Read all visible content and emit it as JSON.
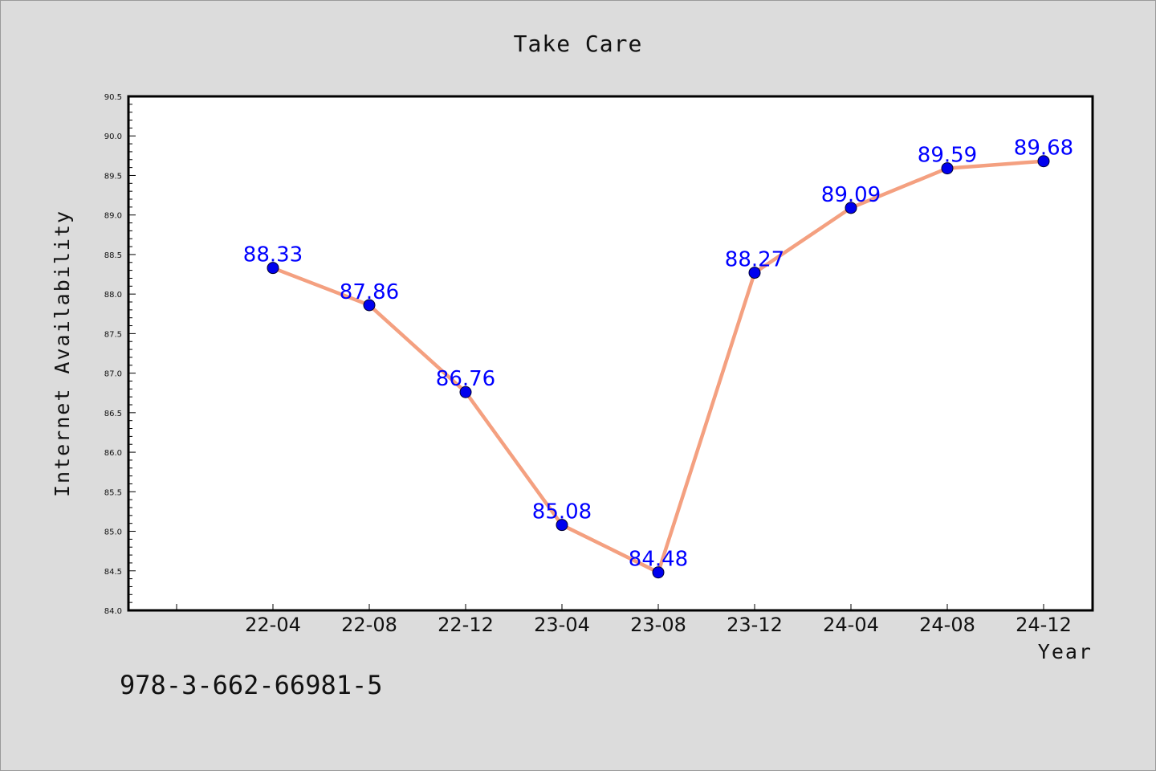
{
  "chart_data": {
    "type": "line",
    "title": "Take Care",
    "xlabel": "Year",
    "ylabel": "Internet Availability",
    "categories": [
      "22-04",
      "22-08",
      "22-12",
      "23-04",
      "23-08",
      "23-12",
      "24-04",
      "24-08",
      "24-12"
    ],
    "series": [
      {
        "values": [
          88.33,
          87.86,
          86.76,
          85.08,
          84.48,
          88.27,
          89.09,
          89.59,
          89.68
        ],
        "labels": [
          "88.33",
          "87.86",
          "86.76",
          "85.08",
          "84.48",
          "88.27",
          "89.09",
          "89.59",
          "89.68"
        ],
        "line_color": "#f4a080",
        "marker_color": "#0000ee",
        "label_color": "#0000ff"
      }
    ],
    "ylim": [
      84.0,
      90.5
    ],
    "yticks": [
      "84.0",
      "84.5",
      "85.0",
      "85.5",
      "86.0",
      "86.5",
      "87.0",
      "87.5",
      "88.0",
      "88.5",
      "89.0",
      "89.5",
      "90.0",
      "90.5"
    ],
    "grid": false,
    "legend": "none"
  },
  "footnote": "978-3-662-66981-5"
}
